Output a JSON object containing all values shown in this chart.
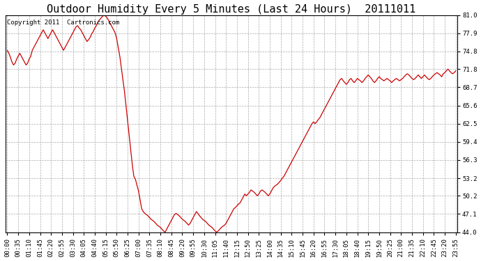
{
  "title": "Outdoor Humidity Every 5 Minutes (Last 24 Hours)  20111011",
  "copyright_text": "Copyright 2011  Cartronics.com",
  "line_color": "#cc0000",
  "background_color": "#ffffff",
  "plot_bg_color": "#ffffff",
  "grid_color": "#aaaaaa",
  "ylim": [
    44.0,
    81.0
  ],
  "yticks": [
    44.0,
    47.1,
    50.2,
    53.2,
    56.3,
    59.4,
    62.5,
    65.6,
    68.7,
    71.8,
    74.8,
    77.9,
    81.0
  ],
  "title_fontsize": 11,
  "tick_fontsize": 6.5,
  "copyright_fontsize": 6.5,
  "humidity_data": [
    75.0,
    74.5,
    73.8,
    73.0,
    72.5,
    72.8,
    73.5,
    74.0,
    74.5,
    74.0,
    73.5,
    73.0,
    72.5,
    72.8,
    73.5,
    74.0,
    75.0,
    75.5,
    76.0,
    76.5,
    77.0,
    77.5,
    78.0,
    78.5,
    78.0,
    77.5,
    77.0,
    77.5,
    78.0,
    78.5,
    78.0,
    77.5,
    77.0,
    76.5,
    76.0,
    75.5,
    75.0,
    75.5,
    76.0,
    76.5,
    77.0,
    77.5,
    78.0,
    78.5,
    79.0,
    79.2,
    78.8,
    78.5,
    78.0,
    77.5,
    77.0,
    76.5,
    76.8,
    77.2,
    77.8,
    78.2,
    78.8,
    79.2,
    79.8,
    80.2,
    80.5,
    80.8,
    81.0,
    80.8,
    80.5,
    80.0,
    79.5,
    79.0,
    78.5,
    78.0,
    77.0,
    75.5,
    74.0,
    72.0,
    70.0,
    68.0,
    65.5,
    63.0,
    60.5,
    58.0,
    55.5,
    53.5,
    53.0,
    52.0,
    51.0,
    49.5,
    48.0,
    47.5,
    47.2,
    47.0,
    46.8,
    46.5,
    46.2,
    46.0,
    45.8,
    45.5,
    45.2,
    45.0,
    44.8,
    44.5,
    44.2,
    44.0,
    44.5,
    45.0,
    45.5,
    46.0,
    46.5,
    47.0,
    47.2,
    47.0,
    46.8,
    46.5,
    46.2,
    46.0,
    45.8,
    45.5,
    45.2,
    45.5,
    46.0,
    46.5,
    47.0,
    47.5,
    47.2,
    46.8,
    46.5,
    46.2,
    46.0,
    45.8,
    45.5,
    45.2,
    45.0,
    44.8,
    44.5,
    44.2,
    44.0,
    44.2,
    44.5,
    44.8,
    45.0,
    45.2,
    45.5,
    46.0,
    46.5,
    47.0,
    47.5,
    48.0,
    48.2,
    48.5,
    48.8,
    49.0,
    49.5,
    50.0,
    50.5,
    50.2,
    50.5,
    50.8,
    51.2,
    51.0,
    50.8,
    50.5,
    50.2,
    50.5,
    51.0,
    51.2,
    51.0,
    50.8,
    50.5,
    50.2,
    50.5,
    51.0,
    51.5,
    51.8,
    52.0,
    52.2,
    52.5,
    52.8,
    53.2,
    53.5,
    54.0,
    54.5,
    55.0,
    55.5,
    56.0,
    56.5,
    57.0,
    57.5,
    58.0,
    58.5,
    59.0,
    59.5,
    60.0,
    60.5,
    61.0,
    61.5,
    62.0,
    62.5,
    62.8,
    62.5,
    62.8,
    63.2,
    63.5,
    64.0,
    64.5,
    65.0,
    65.5,
    66.0,
    66.5,
    67.0,
    67.5,
    68.0,
    68.5,
    69.0,
    69.5,
    70.0,
    70.2,
    69.8,
    69.5,
    69.2,
    69.5,
    70.0,
    70.2,
    69.8,
    69.5,
    69.8,
    70.2,
    70.0,
    69.8,
    69.5,
    69.8,
    70.2,
    70.5,
    70.8,
    70.5,
    70.2,
    69.8,
    69.5,
    69.8,
    70.2,
    70.5,
    70.2,
    70.0,
    69.8,
    70.0,
    70.2,
    70.0,
    69.8,
    69.5,
    69.8,
    70.0,
    70.2,
    70.0,
    69.8,
    70.0,
    70.2,
    70.5,
    70.8,
    71.0,
    70.8,
    70.5,
    70.2,
    70.0,
    70.2,
    70.5,
    70.8,
    70.5,
    70.2,
    70.5,
    70.8,
    70.5,
    70.2,
    70.0,
    70.2,
    70.5,
    70.8,
    71.0,
    71.2,
    71.0,
    70.8,
    70.5,
    71.0,
    71.2,
    71.5,
    71.8,
    71.5,
    71.2,
    71.0,
    71.2,
    71.5,
    71.8,
    72.0
  ]
}
